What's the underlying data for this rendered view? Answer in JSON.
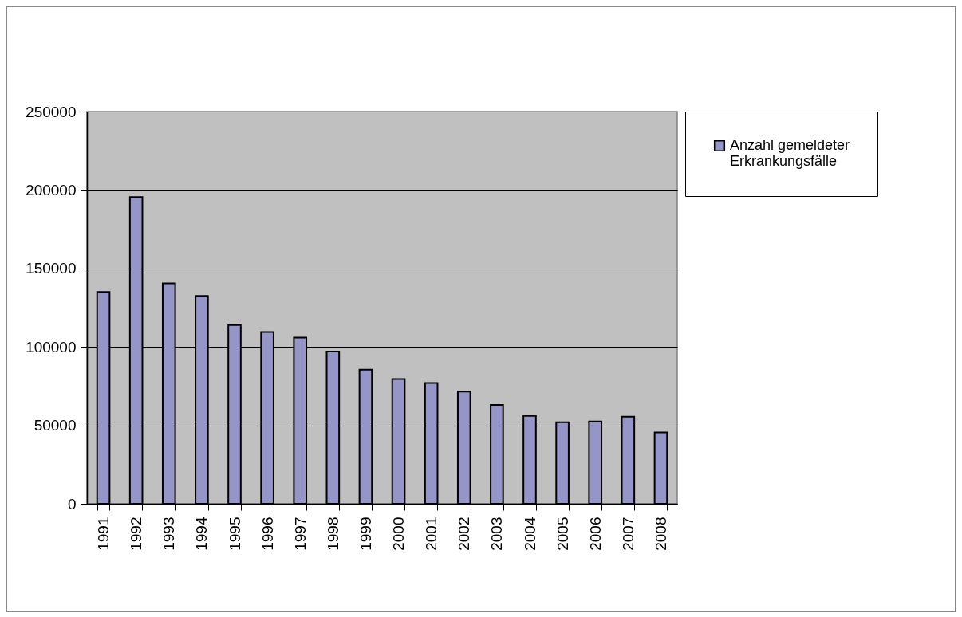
{
  "chart_data": {
    "type": "bar",
    "categories": [
      "1991",
      "1992",
      "1993",
      "1994",
      "1995",
      "1996",
      "1997",
      "1998",
      "1999",
      "2000",
      "2001",
      "2002",
      "2003",
      "2004",
      "2005",
      "2006",
      "2007",
      "2008"
    ],
    "series": [
      {
        "name": "Anzahl gemeldeter Erkrankungsfälle",
        "color": "#9595c8",
        "values": [
          135000,
          195500,
          140500,
          132500,
          114000,
          109500,
          106000,
          97000,
          85500,
          79500,
          77000,
          71500,
          63000,
          56000,
          52000,
          52500,
          55500,
          45500
        ]
      }
    ],
    "ylim": [
      0,
      250000
    ],
    "yticks": [
      0,
      50000,
      100000,
      150000,
      200000,
      250000
    ],
    "grid": "y",
    "legend": "right"
  }
}
